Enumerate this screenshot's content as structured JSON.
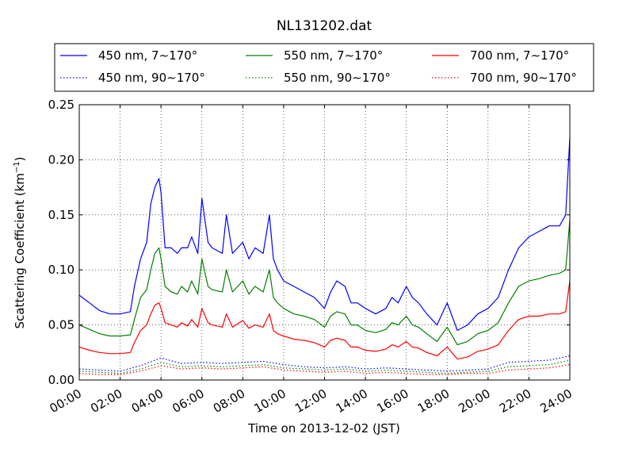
{
  "chart_data": {
    "type": "line",
    "title": "NL131202.dat",
    "xlabel": "Time on 2013-12-02 (JST)",
    "ylabel": "Scattering Coefficient (km",
    "ylabel_exp": "−1",
    "ylabel_close": ")",
    "xlim": [
      0,
      24
    ],
    "ylim": [
      0,
      0.25
    ],
    "x_ticks": [
      0,
      2,
      4,
      6,
      8,
      10,
      12,
      14,
      16,
      18,
      20,
      22,
      24
    ],
    "x_tick_labels": [
      "00:00",
      "02:00",
      "04:00",
      "06:00",
      "08:00",
      "10:00",
      "12:00",
      "14:00",
      "16:00",
      "18:00",
      "20:00",
      "22:00",
      "24:00"
    ],
    "y_ticks": [
      0,
      0.05,
      0.1,
      0.15,
      0.2,
      0.25
    ],
    "y_tick_labels": [
      "0.00",
      "0.05",
      "0.10",
      "0.15",
      "0.20",
      "0.25"
    ],
    "grid": true,
    "legend_position": "top",
    "series": [
      {
        "name": "450 nm, 7∼170°",
        "color": "#0000ff",
        "style": "solid",
        "x": [
          0,
          0.5,
          1,
          1.5,
          2,
          2.5,
          2.7,
          3,
          3.3,
          3.5,
          3.7,
          3.9,
          4.0,
          4.2,
          4.5,
          4.8,
          5,
          5.3,
          5.5,
          5.8,
          6,
          6.3,
          6.5,
          7,
          7.2,
          7.5,
          8,
          8.3,
          8.6,
          9,
          9.3,
          9.5,
          9.7,
          10,
          10.5,
          11,
          11.5,
          12,
          12.3,
          12.6,
          13,
          13.3,
          13.6,
          14,
          14.5,
          15,
          15.3,
          15.6,
          16,
          16.3,
          16.6,
          17,
          17.5,
          18,
          18.5,
          19,
          19.5,
          20,
          20.5,
          21,
          21.5,
          22,
          22.5,
          23,
          23.5,
          23.8,
          24
        ],
        "y": [
          0.077,
          0.07,
          0.063,
          0.06,
          0.06,
          0.062,
          0.085,
          0.11,
          0.125,
          0.16,
          0.175,
          0.183,
          0.17,
          0.12,
          0.12,
          0.115,
          0.12,
          0.12,
          0.13,
          0.115,
          0.165,
          0.125,
          0.12,
          0.115,
          0.15,
          0.115,
          0.125,
          0.11,
          0.12,
          0.115,
          0.15,
          0.11,
          0.1,
          0.09,
          0.085,
          0.08,
          0.075,
          0.065,
          0.08,
          0.09,
          0.085,
          0.07,
          0.07,
          0.065,
          0.06,
          0.065,
          0.075,
          0.07,
          0.085,
          0.075,
          0.07,
          0.06,
          0.05,
          0.07,
          0.045,
          0.05,
          0.06,
          0.065,
          0.075,
          0.1,
          0.12,
          0.13,
          0.135,
          0.14,
          0.14,
          0.15,
          0.22
        ]
      },
      {
        "name": "450 nm, 90∼170°",
        "color": "#0000ff",
        "style": "dotted",
        "x": [
          0,
          1,
          2,
          3,
          4,
          5,
          6,
          7,
          8,
          9,
          10,
          11,
          12,
          13,
          14,
          15,
          16,
          17,
          18,
          19,
          20,
          21,
          22,
          23,
          24
        ],
        "y": [
          0.01,
          0.009,
          0.008,
          0.013,
          0.02,
          0.015,
          0.016,
          0.015,
          0.016,
          0.017,
          0.014,
          0.012,
          0.011,
          0.012,
          0.01,
          0.011,
          0.01,
          0.009,
          0.008,
          0.009,
          0.01,
          0.016,
          0.017,
          0.018,
          0.022
        ]
      },
      {
        "name": "550 nm, 7∼170°",
        "color": "#008000",
        "style": "solid",
        "x": [
          0,
          0.5,
          1,
          1.5,
          2,
          2.5,
          2.7,
          3,
          3.3,
          3.5,
          3.7,
          3.9,
          4.0,
          4.2,
          4.5,
          4.8,
          5,
          5.3,
          5.5,
          5.8,
          6,
          6.3,
          6.5,
          7,
          7.2,
          7.5,
          8,
          8.3,
          8.6,
          9,
          9.3,
          9.5,
          9.7,
          10,
          10.5,
          11,
          11.5,
          12,
          12.3,
          12.6,
          13,
          13.3,
          13.6,
          14,
          14.5,
          15,
          15.3,
          15.6,
          16,
          16.3,
          16.6,
          17,
          17.5,
          18,
          18.5,
          19,
          19.5,
          20,
          20.5,
          21,
          21.5,
          22,
          22.5,
          23,
          23.5,
          23.8,
          24
        ],
        "y": [
          0.05,
          0.046,
          0.042,
          0.04,
          0.04,
          0.041,
          0.055,
          0.075,
          0.082,
          0.1,
          0.115,
          0.12,
          0.11,
          0.085,
          0.08,
          0.078,
          0.085,
          0.08,
          0.09,
          0.078,
          0.11,
          0.085,
          0.082,
          0.08,
          0.1,
          0.08,
          0.09,
          0.078,
          0.085,
          0.08,
          0.1,
          0.075,
          0.07,
          0.065,
          0.06,
          0.058,
          0.055,
          0.048,
          0.058,
          0.062,
          0.06,
          0.05,
          0.05,
          0.045,
          0.043,
          0.046,
          0.052,
          0.05,
          0.058,
          0.05,
          0.048,
          0.042,
          0.035,
          0.048,
          0.032,
          0.035,
          0.042,
          0.045,
          0.052,
          0.07,
          0.085,
          0.09,
          0.092,
          0.095,
          0.097,
          0.1,
          0.145
        ]
      },
      {
        "name": "550 nm, 90∼170°",
        "color": "#008000",
        "style": "dotted",
        "x": [
          0,
          1,
          2,
          3,
          4,
          5,
          6,
          7,
          8,
          9,
          10,
          11,
          12,
          13,
          14,
          15,
          16,
          17,
          18,
          19,
          20,
          21,
          22,
          23,
          24
        ],
        "y": [
          0.008,
          0.007,
          0.006,
          0.01,
          0.016,
          0.012,
          0.013,
          0.012,
          0.013,
          0.014,
          0.011,
          0.01,
          0.009,
          0.01,
          0.008,
          0.009,
          0.008,
          0.007,
          0.006,
          0.007,
          0.008,
          0.012,
          0.013,
          0.014,
          0.018
        ]
      },
      {
        "name": "700 nm, 7∼170°",
        "color": "#ff0000",
        "style": "solid",
        "x": [
          0,
          0.5,
          1,
          1.5,
          2,
          2.5,
          2.7,
          3,
          3.3,
          3.5,
          3.7,
          3.9,
          4.0,
          4.2,
          4.5,
          4.8,
          5,
          5.3,
          5.5,
          5.8,
          6,
          6.3,
          6.5,
          7,
          7.2,
          7.5,
          8,
          8.3,
          8.6,
          9,
          9.3,
          9.5,
          9.7,
          10,
          10.5,
          11,
          11.5,
          12,
          12.3,
          12.6,
          13,
          13.3,
          13.6,
          14,
          14.5,
          15,
          15.3,
          15.6,
          16,
          16.3,
          16.6,
          17,
          17.5,
          18,
          18.5,
          19,
          19.5,
          20,
          20.5,
          21,
          21.5,
          22,
          22.5,
          23,
          23.5,
          23.8,
          24
        ],
        "y": [
          0.03,
          0.027,
          0.025,
          0.024,
          0.024,
          0.025,
          0.034,
          0.045,
          0.05,
          0.06,
          0.068,
          0.07,
          0.065,
          0.052,
          0.05,
          0.048,
          0.052,
          0.049,
          0.055,
          0.048,
          0.065,
          0.052,
          0.05,
          0.048,
          0.06,
          0.048,
          0.054,
          0.047,
          0.05,
          0.048,
          0.06,
          0.045,
          0.042,
          0.04,
          0.037,
          0.036,
          0.034,
          0.03,
          0.036,
          0.038,
          0.036,
          0.03,
          0.03,
          0.027,
          0.026,
          0.028,
          0.032,
          0.03,
          0.035,
          0.03,
          0.029,
          0.025,
          0.022,
          0.03,
          0.019,
          0.021,
          0.026,
          0.028,
          0.032,
          0.045,
          0.055,
          0.058,
          0.058,
          0.06,
          0.06,
          0.062,
          0.09
        ]
      },
      {
        "name": "700 nm, 90∼170°",
        "color": "#ff0000",
        "style": "dotted",
        "x": [
          0,
          1,
          2,
          3,
          4,
          5,
          6,
          7,
          8,
          9,
          10,
          11,
          12,
          13,
          14,
          15,
          16,
          17,
          18,
          19,
          20,
          21,
          22,
          23,
          24
        ],
        "y": [
          0.006,
          0.005,
          0.005,
          0.008,
          0.013,
          0.01,
          0.011,
          0.01,
          0.011,
          0.012,
          0.009,
          0.008,
          0.007,
          0.008,
          0.006,
          0.007,
          0.006,
          0.005,
          0.005,
          0.006,
          0.006,
          0.009,
          0.01,
          0.011,
          0.014
        ]
      }
    ]
  }
}
